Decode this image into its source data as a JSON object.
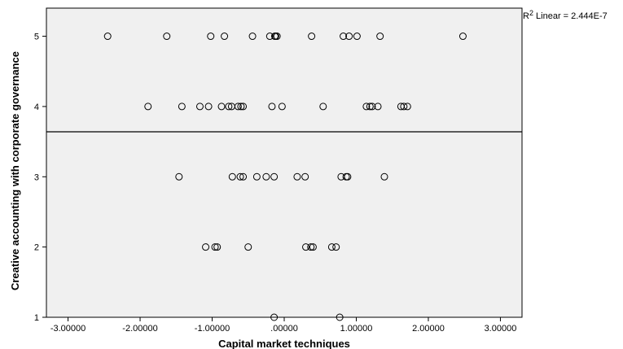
{
  "chart_data": {
    "type": "scatter",
    "xlabel": "Capital market techniques",
    "ylabel": "Creative accounting with corporate governance",
    "xlim": [
      -3.3,
      3.3
    ],
    "ylim": [
      1,
      5.4
    ],
    "x_ticks": [
      {
        "value": -3,
        "label": "-3.00000"
      },
      {
        "value": -2,
        "label": "-2.00000"
      },
      {
        "value": -1,
        "label": "-1.00000"
      },
      {
        "value": 0,
        "label": ".00000"
      },
      {
        "value": 1,
        "label": "1.00000"
      },
      {
        "value": 2,
        "label": "2.00000"
      },
      {
        "value": 3,
        "label": "3.00000"
      }
    ],
    "y_ticks": [
      {
        "value": 1,
        "label": "1"
      },
      {
        "value": 2,
        "label": "2"
      },
      {
        "value": 3,
        "label": "3"
      },
      {
        "value": 4,
        "label": "4"
      },
      {
        "value": 5,
        "label": "5"
      }
    ],
    "fit_line": {
      "type": "linear",
      "y": 3.64
    },
    "annotation": {
      "prefix": "R",
      "superscript": "2",
      "text": " Linear = 2.444E-7"
    },
    "grid": false,
    "plot_background": "#f0f0f0",
    "marker_color": "#000000",
    "points": [
      {
        "x": -2.45,
        "y": 5
      },
      {
        "x": -1.63,
        "y": 5
      },
      {
        "x": -1.02,
        "y": 5
      },
      {
        "x": -0.83,
        "y": 5
      },
      {
        "x": -0.44,
        "y": 5
      },
      {
        "x": -0.2,
        "y": 5
      },
      {
        "x": -0.13,
        "y": 5
      },
      {
        "x": -0.12,
        "y": 5
      },
      {
        "x": -0.1,
        "y": 5
      },
      {
        "x": 0.38,
        "y": 5
      },
      {
        "x": 0.82,
        "y": 5
      },
      {
        "x": 0.9,
        "y": 5
      },
      {
        "x": 1.01,
        "y": 5
      },
      {
        "x": 1.33,
        "y": 5
      },
      {
        "x": 2.48,
        "y": 5
      },
      {
        "x": -1.89,
        "y": 4
      },
      {
        "x": -1.42,
        "y": 4
      },
      {
        "x": -1.17,
        "y": 4
      },
      {
        "x": -1.05,
        "y": 4
      },
      {
        "x": -0.87,
        "y": 4
      },
      {
        "x": -0.77,
        "y": 4
      },
      {
        "x": -0.73,
        "y": 4
      },
      {
        "x": -0.64,
        "y": 4
      },
      {
        "x": -0.6,
        "y": 4
      },
      {
        "x": -0.57,
        "y": 4
      },
      {
        "x": -0.17,
        "y": 4
      },
      {
        "x": -0.03,
        "y": 4
      },
      {
        "x": 0.54,
        "y": 4
      },
      {
        "x": 1.14,
        "y": 4
      },
      {
        "x": 1.19,
        "y": 4
      },
      {
        "x": 1.22,
        "y": 4
      },
      {
        "x": 1.3,
        "y": 4
      },
      {
        "x": 1.62,
        "y": 4
      },
      {
        "x": 1.66,
        "y": 4
      },
      {
        "x": 1.71,
        "y": 4
      },
      {
        "x": -1.46,
        "y": 3
      },
      {
        "x": -0.72,
        "y": 3
      },
      {
        "x": -0.61,
        "y": 3
      },
      {
        "x": -0.57,
        "y": 3
      },
      {
        "x": -0.38,
        "y": 3
      },
      {
        "x": -0.25,
        "y": 3
      },
      {
        "x": -0.14,
        "y": 3
      },
      {
        "x": 0.18,
        "y": 3
      },
      {
        "x": 0.29,
        "y": 3
      },
      {
        "x": 0.79,
        "y": 3
      },
      {
        "x": 0.86,
        "y": 3
      },
      {
        "x": 0.88,
        "y": 3
      },
      {
        "x": 1.39,
        "y": 3
      },
      {
        "x": -1.09,
        "y": 2
      },
      {
        "x": -0.96,
        "y": 2
      },
      {
        "x": -0.93,
        "y": 2
      },
      {
        "x": -0.5,
        "y": 2
      },
      {
        "x": 0.3,
        "y": 2
      },
      {
        "x": 0.37,
        "y": 2
      },
      {
        "x": 0.4,
        "y": 2
      },
      {
        "x": 0.66,
        "y": 2
      },
      {
        "x": 0.72,
        "y": 2
      },
      {
        "x": -0.14,
        "y": 1
      },
      {
        "x": 0.77,
        "y": 1
      }
    ]
  }
}
